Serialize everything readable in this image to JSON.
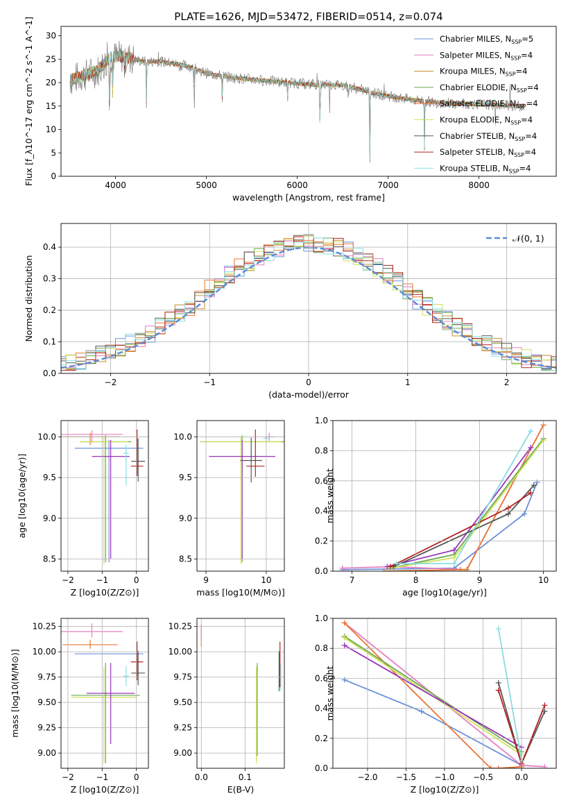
{
  "title": "PLATE=1626, MJD=53472, FIBERID=0514, z=0.074",
  "colors": [
    "#6b8fd9",
    "#e57fc1",
    "#c48a2a",
    "#6aa84f",
    "#e87530",
    "#cfe25a",
    "#555555",
    "#b22222",
    "#88dde0",
    "#9933bb"
  ],
  "chart_data": [
    {
      "type": "line",
      "name": "spectrum",
      "xlabel": "wavelength [Angstrom, rest frame]",
      "ylabel": "Flux [f_λ10^-17 erg cm^-2 s^-1 A^-1]",
      "xlim": [
        3400,
        8850
      ],
      "ylim": [
        0,
        32
      ],
      "xticks": [
        4000,
        5000,
        6000,
        7000,
        8000
      ],
      "yticks": [
        0,
        5,
        10,
        15,
        20,
        25,
        30
      ],
      "continuum": {
        "x": [
          3500,
          3650,
          3800,
          3950,
          4100,
          4300,
          4500,
          4800,
          5000,
          5300,
          5600,
          5900,
          6200,
          6500,
          6700,
          6900,
          7200,
          7500,
          7800,
          8100,
          8500
        ],
        "y": [
          20.5,
          21.5,
          22.5,
          25.5,
          25.5,
          24.5,
          24.5,
          23.5,
          22,
          21,
          20.5,
          20,
          19.5,
          19.5,
          18.5,
          17.5,
          16.5,
          15.8,
          15.5,
          15.3,
          15
        ]
      },
      "absorption_features": [
        {
          "x": 3934,
          "depth": 12
        },
        {
          "x": 3969,
          "depth": 8
        },
        {
          "x": 4102,
          "depth": 4
        },
        {
          "x": 4340,
          "depth": 9
        },
        {
          "x": 4861,
          "depth": 4
        },
        {
          "x": 5175,
          "depth": 5
        },
        {
          "x": 5893,
          "depth": 4
        },
        {
          "x": 6250,
          "depth": 10
        },
        {
          "x": 6563,
          "depth": 3
        },
        {
          "x": 6800,
          "depth": 14
        },
        {
          "x": 7400,
          "depth": 10
        }
      ],
      "series": [
        {
          "name": "Chabrier MILES, N_SSP=5",
          "legend_label": "Chabrier MILES, N",
          "legend_sub": "SSP",
          "legend_tail": "=5"
        },
        {
          "name": "Salpeter MILES, N_SSP=4",
          "legend_label": "Salpeter MILES, N",
          "legend_sub": "SSP",
          "legend_tail": "=4"
        },
        {
          "name": "Kroupa MILES, N_SSP=4",
          "legend_label": "Kroupa MILES, N",
          "legend_sub": "SSP",
          "legend_tail": "=4"
        },
        {
          "name": "Chabrier ELODIE, N_SSP=4",
          "legend_label": "Chabrier ELODIE, N",
          "legend_sub": "SSP",
          "legend_tail": "=4"
        },
        {
          "name": "Salpeter ELODIE, N_SSP=4",
          "legend_label": "Salpeter ELODIE, N",
          "legend_sub": "SSP",
          "legend_tail": "=4"
        },
        {
          "name": "Kroupa ELODIE, N_SSP=4",
          "legend_label": "Kroupa ELODIE, N",
          "legend_sub": "SSP",
          "legend_tail": "=4"
        },
        {
          "name": "Chabrier STELIB, N_SSP=4",
          "legend_label": "Chabrier STELIB, N",
          "legend_sub": "SSP",
          "legend_tail": "=4"
        },
        {
          "name": "Salpeter STELIB, N_SSP=4",
          "legend_label": "Salpeter STELIB, N",
          "legend_sub": "SSP",
          "legend_tail": "=4"
        },
        {
          "name": "Kroupa STELIB, N_SSP=4",
          "legend_label": "Kroupa STELIB, N",
          "legend_sub": "SSP",
          "legend_tail": "=4"
        }
      ]
    },
    {
      "type": "histogram",
      "name": "residuals",
      "xlabel": "(data-model)/error",
      "ylabel": "Normed distribution",
      "xlim": [
        -2.5,
        2.5
      ],
      "ylim": [
        0,
        0.475
      ],
      "xticks": [
        -2,
        -1,
        0,
        1,
        2
      ],
      "yticks": [
        0.0,
        0.1,
        0.2,
        0.3,
        0.4
      ],
      "bin_width": 0.1,
      "reference_curve": {
        "name": "N(0,1)",
        "label": "𝒩(0, 1)",
        "style": "dashed",
        "color": "#5b8bd6"
      }
    },
    {
      "type": "scatter",
      "name": "age-vs-Z",
      "xlabel": "Z [log10(Z/Z⊙)]",
      "ylabel": "age [log10(age/yr)]",
      "xlim": [
        -2.2,
        0.35
      ],
      "ylim": [
        8.35,
        10.2
      ],
      "xticks": [
        -2,
        -1,
        0
      ],
      "yticks": [
        8.5,
        9.0,
        9.5,
        10.0
      ],
      "points": [
        {
          "x": -0.8,
          "y": 9.86,
          "xerr": 1.0,
          "yerr_lo": 1.4,
          "yerr_hi": 0.1,
          "c": 0
        },
        {
          "x": -1.3,
          "y": 10.03,
          "xerr": 0.9,
          "yerr_lo": 0.1,
          "yerr_hi": 0.05,
          "c": 1
        },
        {
          "x": -1.35,
          "y": 10.0,
          "xerr": 0.85,
          "yerr_lo": 0.1,
          "yerr_hi": 0.05,
          "c": 4
        },
        {
          "x": -0.9,
          "y": 9.94,
          "xerr": 0.75,
          "yerr_lo": 1.48,
          "yerr_hi": 0.08,
          "c": 3
        },
        {
          "x": -0.95,
          "y": 9.94,
          "xerr": 0.7,
          "yerr_lo": 1.5,
          "yerr_hi": 0.06,
          "c": 5
        },
        {
          "x": -0.75,
          "y": 9.76,
          "xerr": 0.55,
          "yerr_lo": 1.26,
          "yerr_hi": 0.2,
          "c": 9
        },
        {
          "x": 0.05,
          "y": 9.7,
          "xerr": 0.2,
          "yerr_lo": 0.25,
          "yerr_hi": 0.28,
          "c": 6
        },
        {
          "x": 0.02,
          "y": 9.64,
          "xerr": 0.18,
          "yerr_lo": 0.12,
          "yerr_hi": 0.45,
          "c": 7
        },
        {
          "x": -0.3,
          "y": 9.8,
          "xerr": 0.08,
          "yerr_lo": 0.4,
          "yerr_hi": 0.1,
          "c": 8
        }
      ]
    },
    {
      "type": "scatter",
      "name": "age-vs-mass",
      "xlabel": "mass [log10(M/M⊙)]",
      "ylabel": "",
      "xlim": [
        8.85,
        10.3
      ],
      "ylim": [
        8.35,
        10.2
      ],
      "xticks": [
        9,
        10
      ],
      "yticks": [
        8.5,
        9.0,
        9.5,
        10.0
      ],
      "points": [
        {
          "x": 9.6,
          "y": 9.94,
          "xerr": 0.7,
          "yerr_lo": 1.48,
          "yerr_hi": 0.08,
          "c": 3
        },
        {
          "x": 9.58,
          "y": 9.94,
          "xerr": 0.67,
          "yerr_lo": 1.5,
          "yerr_hi": 0.06,
          "c": 5
        },
        {
          "x": 9.6,
          "y": 9.76,
          "xerr": 0.55,
          "yerr_lo": 1.26,
          "yerr_hi": 0.2,
          "c": 9
        },
        {
          "x": 9.75,
          "y": 9.71,
          "xerr": 0.18,
          "yerr_lo": 0.27,
          "yerr_hi": 0.28,
          "c": 6
        },
        {
          "x": 9.82,
          "y": 9.64,
          "xerr": 0.15,
          "yerr_lo": 0.13,
          "yerr_hi": 0.45,
          "c": 7
        },
        {
          "x": 10.05,
          "y": 10.0,
          "xerr": 0.08,
          "yerr_lo": 0.05,
          "yerr_hi": 0.05,
          "c": 1
        },
        {
          "x": 10.0,
          "y": 9.98,
          "xerr": 0.05,
          "yerr_lo": 0.05,
          "yerr_hi": 0.05,
          "c": 8
        }
      ]
    },
    {
      "type": "line",
      "name": "mass-weight-vs-age",
      "xlabel": "age [log10(age/yr)]",
      "ylabel": "mass weight",
      "xlim": [
        6.7,
        10.2
      ],
      "ylim": [
        0,
        1.0
      ],
      "xticks": [
        7,
        8,
        9,
        10
      ],
      "yticks": [
        0.0,
        0.2,
        0.4,
        0.6,
        0.8,
        1.0
      ],
      "series": [
        {
          "c": 0,
          "x": [
            6.85,
            8.6,
            9.7,
            9.9
          ],
          "y": [
            0.01,
            0.02,
            0.38,
            0.59
          ]
        },
        {
          "c": 1,
          "x": [
            6.85,
            7.6,
            8.8,
            10.0
          ],
          "y": [
            0.02,
            0.03,
            0.01,
            0.97
          ]
        },
        {
          "c": 4,
          "x": [
            7.5,
            8.7,
            8.8,
            10.0
          ],
          "y": [
            0.0,
            0.01,
            0.01,
            0.97
          ]
        },
        {
          "c": 3,
          "x": [
            7.6,
            8.6,
            10.0
          ],
          "y": [
            0.02,
            0.11,
            0.88
          ]
        },
        {
          "c": 5,
          "x": [
            7.6,
            8.6,
            10.0
          ],
          "y": [
            0.02,
            0.09,
            0.87
          ]
        },
        {
          "c": 9,
          "x": [
            7.55,
            8.6,
            9.8
          ],
          "y": [
            0.03,
            0.14,
            0.82
          ]
        },
        {
          "c": 6,
          "x": [
            7.65,
            9.45,
            9.85
          ],
          "y": [
            0.03,
            0.38,
            0.57
          ]
        },
        {
          "c": 7,
          "x": [
            7.6,
            9.45,
            9.8
          ],
          "y": [
            0.03,
            0.42,
            0.52
          ]
        },
        {
          "c": 8,
          "x": [
            7.7,
            8.6,
            9.8
          ],
          "y": [
            0.05,
            0.05,
            0.93
          ]
        }
      ]
    },
    {
      "type": "scatter",
      "name": "mass-vs-Z",
      "xlabel": "Z [log10(Z/Z⊙)]",
      "ylabel": "mass [log10(M/M⊙)]",
      "xlim": [
        -2.2,
        0.35
      ],
      "ylim": [
        8.85,
        10.33
      ],
      "xticks": [
        -2,
        -1,
        0
      ],
      "yticks": [
        9.0,
        9.25,
        9.5,
        9.75,
        10.0,
        10.25
      ],
      "points": [
        {
          "x": -0.8,
          "y": 9.98,
          "xerr": 1.0,
          "yerr_lo": 0.0,
          "yerr_hi": 0.0,
          "c": 0
        },
        {
          "x": -1.3,
          "y": 10.2,
          "xerr": 0.9,
          "yerr_lo": 0.06,
          "yerr_hi": 0.08,
          "c": 1
        },
        {
          "x": -1.35,
          "y": 10.07,
          "xerr": 0.8,
          "yerr_lo": 0.04,
          "yerr_hi": 0.05,
          "c": 4
        },
        {
          "x": -0.9,
          "y": 9.57,
          "xerr": 1.0,
          "yerr_lo": 0.67,
          "yerr_hi": 0.32,
          "c": 3
        },
        {
          "x": -0.95,
          "y": 9.55,
          "xerr": 0.95,
          "yerr_lo": 0.65,
          "yerr_hi": 0.3,
          "c": 5
        },
        {
          "x": -0.75,
          "y": 9.59,
          "xerr": 0.7,
          "yerr_lo": 0.5,
          "yerr_hi": 0.3,
          "c": 9
        },
        {
          "x": 0.05,
          "y": 9.79,
          "xerr": 0.2,
          "yerr_lo": 0.12,
          "yerr_hi": 0.22,
          "c": 6
        },
        {
          "x": 0.02,
          "y": 9.9,
          "xerr": 0.18,
          "yerr_lo": 0.18,
          "yerr_hi": 0.2,
          "c": 7
        },
        {
          "x": -0.3,
          "y": 9.76,
          "xerr": 0.08,
          "yerr_lo": 0.1,
          "yerr_hi": 0.1,
          "c": 8
        }
      ]
    },
    {
      "type": "scatter",
      "name": "mass-vs-ebv",
      "xlabel": "E(B-V)",
      "ylabel": "",
      "xlim": [
        -0.01,
        0.19
      ],
      "ylim": [
        8.85,
        10.33
      ],
      "xticks": [
        0.0,
        0.1
      ],
      "yticks": [
        9.0,
        9.25,
        9.5,
        9.75,
        10.0,
        10.25
      ],
      "points": [
        {
          "x": 0.0,
          "y": 10.15,
          "yerr_lo": 0.1,
          "yerr_hi": 0.12,
          "c": 4
        },
        {
          "x": 0.0,
          "y": 10.2,
          "yerr_lo": 0.06,
          "yerr_hi": 0.05,
          "c": 1
        },
        {
          "x": 0.126,
          "y": 9.55,
          "yerr_lo": 0.65,
          "yerr_hi": 0.3,
          "c": 5
        },
        {
          "x": 0.128,
          "y": 9.57,
          "yerr_lo": 0.6,
          "yerr_hi": 0.32,
          "c": 3
        },
        {
          "x": 0.178,
          "y": 9.79,
          "yerr_lo": 0.18,
          "yerr_hi": 0.22,
          "c": 6
        },
        {
          "x": 0.18,
          "y": 9.9,
          "yerr_lo": 0.25,
          "yerr_hi": 0.2,
          "c": 7
        },
        {
          "x": 0.182,
          "y": 9.76,
          "yerr_lo": 0.15,
          "yerr_hi": 0.12,
          "c": 8
        }
      ]
    },
    {
      "type": "line",
      "name": "mass-weight-vs-Z",
      "xlabel": "Z [log10(Z/Z⊙)]",
      "ylabel": "mass weight",
      "xlim": [
        -2.45,
        0.45
      ],
      "ylim": [
        0,
        1.0
      ],
      "xticks": [
        -2.0,
        -1.5,
        -1.0,
        -0.5,
        0.0
      ],
      "yticks": [
        0.0,
        0.2,
        0.4,
        0.6,
        0.8,
        1.0
      ],
      "series": [
        {
          "c": 0,
          "x": [
            -2.3,
            -1.3,
            0.0
          ],
          "y": [
            0.59,
            0.38,
            0.02
          ]
        },
        {
          "c": 1,
          "x": [
            -2.3,
            0.0,
            0.3
          ],
          "y": [
            0.97,
            0.02,
            0.01
          ]
        },
        {
          "c": 4,
          "x": [
            -2.3,
            -0.4,
            -0.3,
            0.0
          ],
          "y": [
            0.97,
            0.0,
            0.0,
            0.01
          ]
        },
        {
          "c": 3,
          "x": [
            -2.3,
            0.0
          ],
          "y": [
            0.88,
            0.11
          ]
        },
        {
          "c": 5,
          "x": [
            -2.3,
            0.0
          ],
          "y": [
            0.87,
            0.09
          ]
        },
        {
          "c": 9,
          "x": [
            -2.3,
            0.0
          ],
          "y": [
            0.82,
            0.14
          ]
        },
        {
          "c": 6,
          "x": [
            -0.3,
            0.0,
            0.3
          ],
          "y": [
            0.57,
            0.03,
            0.38
          ]
        },
        {
          "c": 7,
          "x": [
            -0.3,
            0.0,
            0.3
          ],
          "y": [
            0.52,
            0.03,
            0.42
          ]
        },
        {
          "c": 8,
          "x": [
            -0.3,
            0.0
          ],
          "y": [
            0.93,
            0.05
          ]
        }
      ]
    }
  ]
}
